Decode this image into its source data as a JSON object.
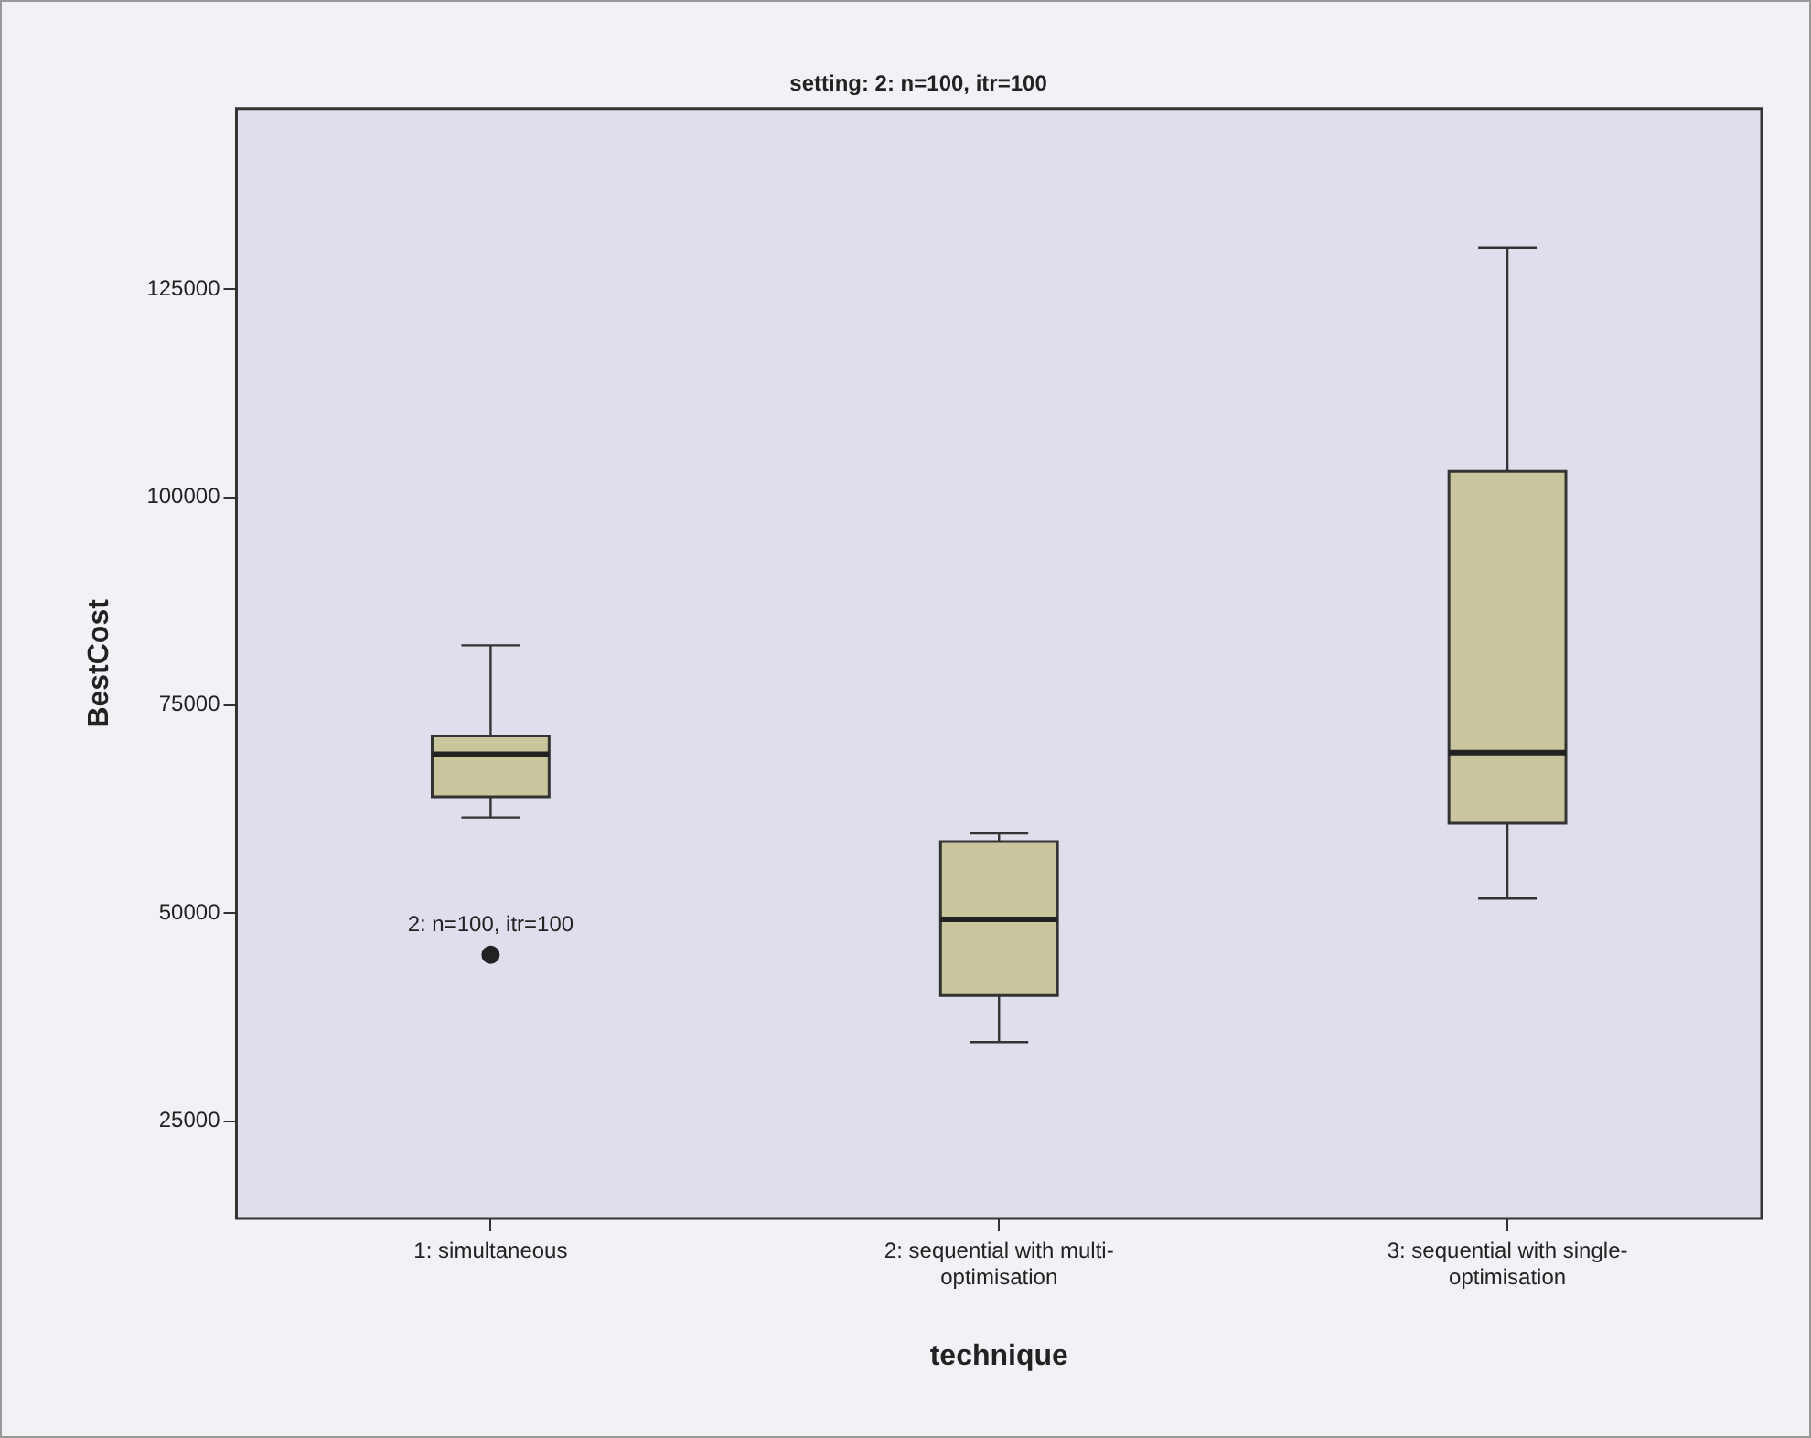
{
  "chart_data": {
    "type": "box",
    "title": "setting: 2: n=100, itr=100",
    "xlabel": "technique",
    "ylabel": "BestCost",
    "categories": [
      "1: simultaneous",
      "2: sequential with multi-optimisation",
      "3: sequential with single-optimisation"
    ],
    "color": "#c9c59c",
    "boxes": [
      {
        "low": 61500,
        "q1": 64000,
        "median": 69100,
        "q3": 71300,
        "high": 82200,
        "outliers": [
          45000
        ]
      },
      {
        "low": 34500,
        "q1": 40100,
        "median": 49250,
        "q3": 58600,
        "high": 59600
      },
      {
        "low": 51750,
        "q1": 60800,
        "median": 69300,
        "q3": 103100,
        "high": 130000
      }
    ],
    "ylim": [
      13300,
      146700
    ],
    "yticks": [
      25000,
      50000,
      75000,
      100000,
      125000
    ],
    "grid": false,
    "legend": false,
    "annotations": [
      "2: n=100, itr=100"
    ]
  }
}
